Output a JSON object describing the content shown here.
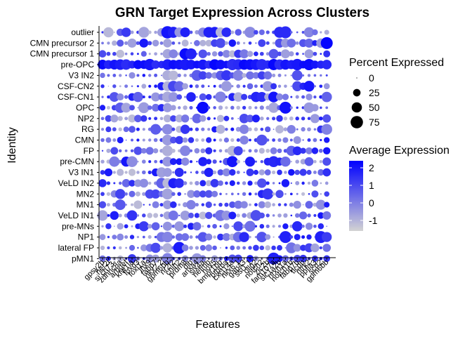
{
  "chart_data": {
    "type": "dotplot",
    "title": "GRN Target Expression Across Clusters",
    "xlabel": "Features",
    "ylabel": "Identity",
    "rows": [
      "outlier",
      "CMN precursor 2",
      "CMN precursor 1",
      "pre-OPC",
      "V3 IN2",
      "CSF-CN2",
      "CSF-CN1",
      "OPC",
      "NP2",
      "RG",
      "CMN",
      "FP",
      "pre-CMN",
      "V3 IN1",
      "VeLD IN2",
      "MN2",
      "MN1",
      "VeLD IN1",
      "pre-MNs",
      "NP1",
      "lateral FP",
      "pMN1"
    ],
    "features": [
      "gpsy2b",
      "her2l",
      "si:ch73-",
      "zdhhc8a",
      "arhgef",
      "kfw1la",
      "foxd3",
      "foxi1a",
      "lhx9",
      "fabp7",
      "nkx2.2",
      "gpm6bb",
      "nr2f2",
      "cnih2",
      "prdm8",
      "dlb",
      "anxa4",
      "six4a",
      "nefmb",
      "hox5",
      "bmpr1bb",
      "ptprna",
      "cxcl14a",
      "nkx6.1",
      "gap43",
      "sst1.1",
      "olig2",
      "notch2",
      "zic2b",
      "fam107a",
      "slc1a2b",
      "nrxn1a",
      "notch1b",
      "fabp7b",
      "tlcdb",
      "ntrk2",
      "ppfia3",
      "scrt2",
      "gpm6bb"
    ],
    "value_encoding": {
      "size": "Percent Expressed",
      "color": "Average Expression"
    },
    "size_legend": {
      "title": "Percent Expressed",
      "breaks": [
        0,
        25,
        50,
        75
      ]
    },
    "color_legend": {
      "title": "Average Expression",
      "breaks": [
        2,
        1,
        0,
        -1
      ],
      "range": [
        -1.6,
        2.4
      ],
      "low_color": "#d3d3d3",
      "high_color": "#0000ff"
    },
    "hot_spots": [
      {
        "row": "outlier",
        "col": 11,
        "pct": 75,
        "avg": 2.0
      },
      {
        "row": "outlier",
        "col": 12,
        "pct": 60,
        "avg": 1.8
      },
      {
        "row": "outlier",
        "col": 18,
        "pct": 55,
        "avg": 1.8
      },
      {
        "row": "outlier",
        "col": 30,
        "pct": 60,
        "avg": 1.6
      },
      {
        "row": "outlier",
        "col": 31,
        "pct": 70,
        "avg": 1.6
      },
      {
        "row": "CMN precursor 2",
        "col": 38,
        "pct": 70,
        "avg": 2.3
      },
      {
        "row": "CMN precursor 1",
        "col": 14,
        "pct": 60,
        "avg": 2.2
      },
      {
        "row": "OPC",
        "col": 17,
        "pct": 70,
        "avg": 2.2
      },
      {
        "row": "OPC",
        "col": 31,
        "pct": 70,
        "avg": 2.1
      },
      {
        "row": "CSF-CN2",
        "col": 35,
        "pct": 55,
        "avg": 2.0
      },
      {
        "row": "CSF-CN1",
        "col": 29,
        "pct": 55,
        "avg": 2.0
      },
      {
        "row": "pre-CMN",
        "col": 22,
        "pct": 60,
        "avg": 2.0
      },
      {
        "row": "NP1",
        "col": 31,
        "pct": 70,
        "avg": 1.8
      },
      {
        "row": "NP1",
        "col": 37,
        "pct": 70,
        "avg": 1.8
      },
      {
        "row": "lateral FP",
        "col": 13,
        "pct": 70,
        "avg": 1.9
      },
      {
        "row": "pMN1",
        "col": 29,
        "pct": 70,
        "avg": 1.8
      }
    ]
  }
}
